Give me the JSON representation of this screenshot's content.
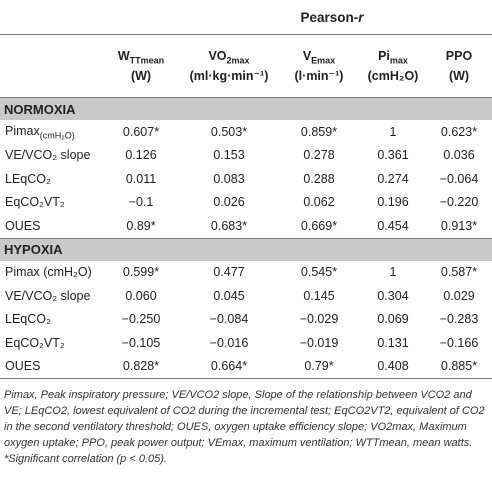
{
  "header": {
    "group_label": "Pearson-r",
    "columns": [
      {
        "main": "W",
        "sub": "TTmean",
        "unit": "(W)"
      },
      {
        "main": "VO",
        "sub": "2max",
        "unit": "(ml·kg·min⁻¹)"
      },
      {
        "main": "V",
        "sub": "Emax",
        "unit": "(l·min⁻¹)"
      },
      {
        "main": "Pi",
        "sub": "max",
        "unit": "(cmH₂O)"
      },
      {
        "main": "PPO",
        "sub": "",
        "unit": "(W)"
      }
    ]
  },
  "sections": [
    {
      "title": "NORMOXIA",
      "rows": [
        {
          "label": "Pimax",
          "label_sub": "(cmH₂O)",
          "values": [
            "0.607*",
            "0.503*",
            "0.859*",
            "1",
            "0.623*"
          ]
        },
        {
          "label": "VE/VCO₂ slope",
          "label_sub": "",
          "values": [
            "0.126",
            "0.153",
            "0.278",
            "0.361",
            "0.036"
          ]
        },
        {
          "label": "LEqCO₂",
          "label_sub": "",
          "values": [
            "0.011",
            "0.083",
            "0.288",
            "0.274",
            "−0.064"
          ]
        },
        {
          "label": "EqCO₂VT₂",
          "label_sub": "",
          "values": [
            "−0.1",
            "0.026",
            "0.062",
            "0.196",
            "−0.220"
          ]
        },
        {
          "label": "OUES",
          "label_sub": "",
          "values": [
            "0.89*",
            "0.683*",
            "0.669*",
            "0.454",
            "0.913*"
          ]
        }
      ]
    },
    {
      "title": "HYPOXIA",
      "rows": [
        {
          "label": "Pimax (cmH₂O)",
          "label_sub": "",
          "values": [
            "0.599*",
            "0.477",
            "0.545*",
            "1",
            "0.587*"
          ]
        },
        {
          "label": "VE/VCO₂ slope",
          "label_sub": "",
          "values": [
            "0.060",
            "0.045",
            "0.145",
            "0.304",
            "0.029"
          ]
        },
        {
          "label": "LEqCO₂",
          "label_sub": "",
          "values": [
            "−0.250",
            "−0.084",
            "−0.029",
            "0.069",
            "−0.283"
          ]
        },
        {
          "label": "EqCO₂VT₂",
          "label_sub": "",
          "values": [
            "−0.105",
            "−0.016",
            "−0.019",
            "0.131",
            "−0.166"
          ]
        },
        {
          "label": "OUES",
          "label_sub": "",
          "values": [
            "0.828*",
            "0.664*",
            "0.79*",
            "0.408",
            "0.885*"
          ]
        }
      ]
    }
  ],
  "footnote": "Pimax, Peak inspiratory pressure; VE/VCO2 slope, Slope of the relationship between VCO2 and VE; LEqCO2, lowest equivalent of CO2 during the incremental test; EqCO2VT2, equivalent of CO2 in the second ventilatory threshold; OUES, oxygen uptake efficiency slope; VO2max, Maximum oxygen uptake; PPO, peak power output; VEmax, maximum ventilation; WTTmean, mean watts.",
  "significance_note": "*Significant correlation (p < 0.05)."
}
